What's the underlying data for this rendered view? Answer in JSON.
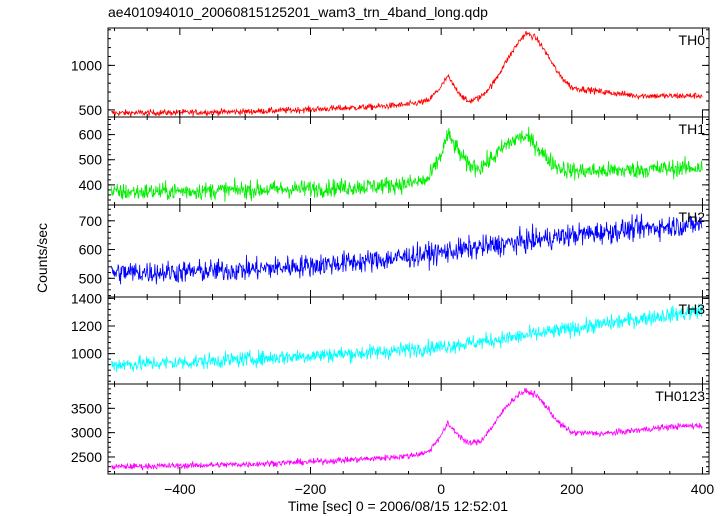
{
  "chart_data": {
    "type": "line",
    "title": "ae401094010_20060815125201_wam3_trn_4band_long.qdp",
    "xlabel": "Time [sec] 0 = 2006/08/15 12:52:01",
    "ylabel": "Counts/sec",
    "xlim": [
      -510,
      410
    ],
    "x_ticks": [
      -400,
      -200,
      0,
      200,
      400
    ],
    "panels": [
      {
        "name": "TH0",
        "color": "#ff0000",
        "ylim": [
          420,
          1420
        ],
        "y_ticks": [
          500,
          1000
        ],
        "noise": 25,
        "series": {
          "x": [
            -505,
            -400,
            -300,
            -200,
            -100,
            -50,
            -20,
            0,
            10,
            20,
            40,
            60,
            80,
            100,
            120,
            130,
            145,
            160,
            180,
            200,
            250,
            300,
            350,
            400
          ],
          "y": [
            465,
            470,
            480,
            505,
            535,
            560,
            600,
            760,
            880,
            760,
            590,
            640,
            800,
            1050,
            1280,
            1360,
            1310,
            1150,
            900,
            750,
            700,
            660,
            655,
            660
          ]
        }
      },
      {
        "name": "TH1",
        "color": "#00ee00",
        "ylim": [
          320,
          670
        ],
        "y_ticks": [
          400,
          500,
          600
        ],
        "noise": 25,
        "series": {
          "x": [
            -505,
            -400,
            -300,
            -200,
            -100,
            -50,
            -20,
            0,
            10,
            20,
            40,
            60,
            80,
            100,
            120,
            130,
            145,
            160,
            180,
            200,
            250,
            300,
            350,
            400
          ],
          "y": [
            370,
            375,
            380,
            385,
            395,
            405,
            420,
            520,
            600,
            560,
            480,
            470,
            510,
            560,
            590,
            590,
            560,
            510,
            470,
            455,
            455,
            460,
            465,
            470
          ]
        }
      },
      {
        "name": "TH2",
        "color": "#0000ff",
        "ylim": [
          435,
          755
        ],
        "y_ticks": [
          500,
          600,
          700
        ],
        "noise": 28,
        "series": {
          "x": [
            -505,
            -400,
            -300,
            -200,
            -100,
            0,
            100,
            200,
            300,
            400
          ],
          "y": [
            520,
            522,
            530,
            545,
            562,
            590,
            620,
            650,
            672,
            690
          ]
        }
      },
      {
        "name": "TH3",
        "color": "#00ffff",
        "ylim": [
          780,
          1410
        ],
        "y_ticks": [
          1000,
          1200,
          1400
        ],
        "noise": 40,
        "series": {
          "x": [
            -505,
            -400,
            -300,
            -200,
            -100,
            0,
            100,
            200,
            300,
            400
          ],
          "y": [
            920,
            935,
            960,
            985,
            1010,
            1050,
            1110,
            1180,
            1250,
            1310
          ]
        }
      },
      {
        "name": "TH0123",
        "color": "#ff00ff",
        "ylim": [
          2150,
          4000
        ],
        "y_ticks": [
          2500,
          3000,
          3500
        ],
        "noise": 45,
        "series": {
          "x": [
            -505,
            -400,
            -300,
            -200,
            -100,
            -50,
            -20,
            0,
            10,
            20,
            40,
            60,
            80,
            100,
            120,
            130,
            145,
            160,
            180,
            200,
            250,
            300,
            350,
            400
          ],
          "y": [
            2300,
            2320,
            2350,
            2400,
            2470,
            2520,
            2600,
            2950,
            3180,
            3050,
            2780,
            2820,
            3150,
            3550,
            3800,
            3850,
            3780,
            3550,
            3200,
            3000,
            2980,
            3050,
            3120,
            3150
          ]
        }
      }
    ]
  }
}
